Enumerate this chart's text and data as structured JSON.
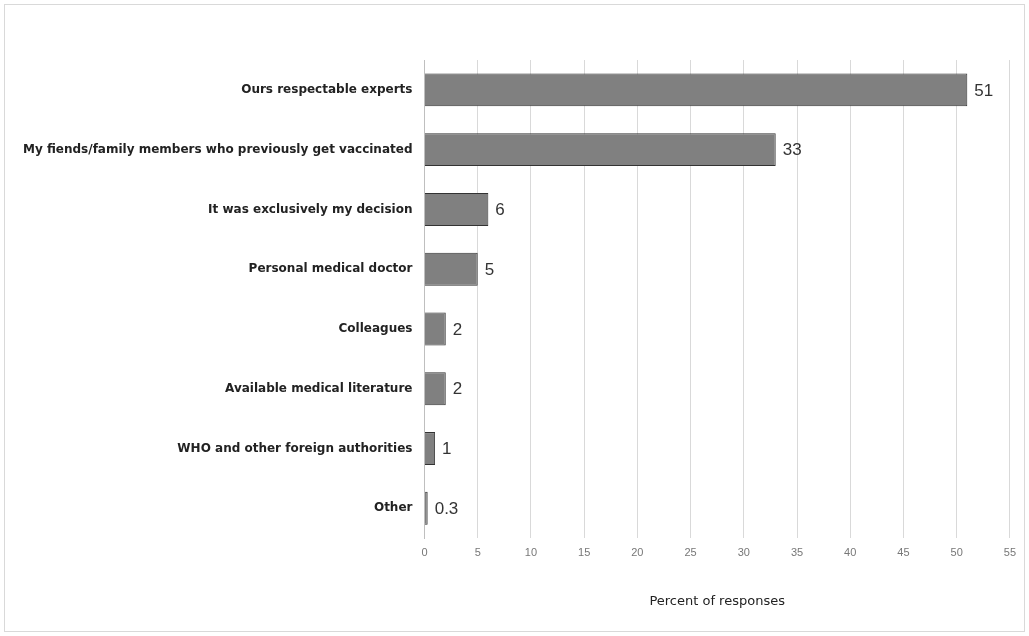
{
  "chart_data": {
    "type": "bar",
    "orientation": "horizontal",
    "xlabel": "Percent of responses",
    "categories": [
      "Ours respectable experts",
      "My fiends/family members who previously get vaccinated",
      "It was exclusively my decision",
      "Personal medical doctor",
      "Colleagues",
      "Available medical literature",
      "WHO and other foreign authorities",
      "Other"
    ],
    "values": [
      51,
      33,
      6,
      5,
      2,
      2,
      1,
      0.3
    ],
    "color": "#808080",
    "xlim": [
      0,
      55
    ],
    "xticks": [
      0,
      5,
      10,
      15,
      20,
      25,
      30,
      35,
      40,
      45,
      50,
      55
    ],
    "grid": "x",
    "data_labels": true,
    "legend": false
  }
}
